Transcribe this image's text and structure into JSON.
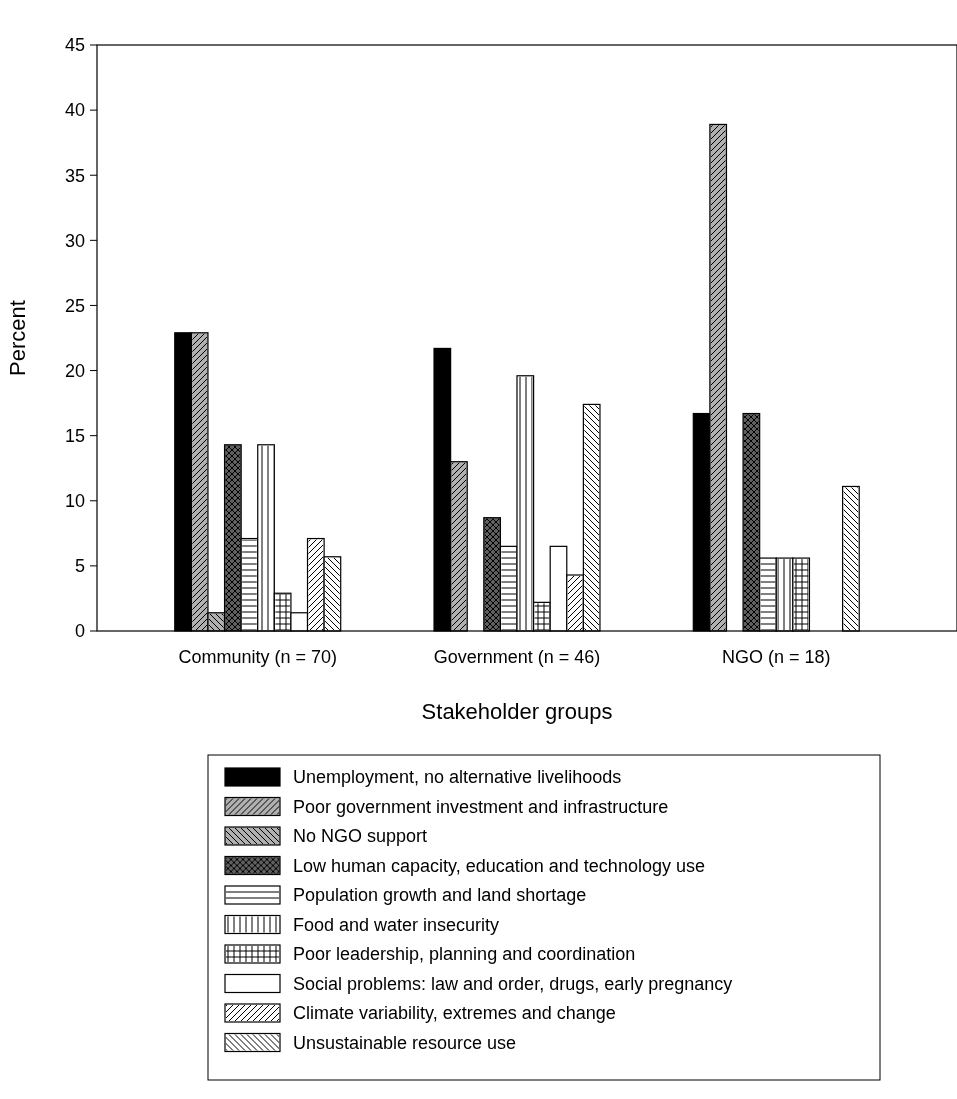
{
  "chart_data": {
    "type": "bar",
    "xlabel": "Stakeholder groups",
    "ylabel": "Percent",
    "categories": [
      "Community (n = 70)",
      "Government (n = 46)",
      "NGO (n = 18)"
    ],
    "ylim": [
      0,
      45
    ],
    "yticks": [
      0,
      5,
      10,
      15,
      20,
      25,
      30,
      35,
      40,
      45
    ],
    "legend": "bottom",
    "series": [
      {
        "name": "Unemployment, no alternative livelihoods",
        "color": "#000000",
        "values": [
          22.9,
          21.7,
          16.7
        ]
      },
      {
        "name": "Poor government investment and infrastructure",
        "color": "#b0b0b0",
        "values": [
          22.9,
          13.0,
          38.9
        ]
      },
      {
        "name": "No NGO support",
        "color": "#b0b0b0",
        "values": [
          1.4,
          0,
          0
        ]
      },
      {
        "name": "Low human capacity, education and technology use",
        "color": "#606060",
        "values": [
          14.3,
          8.7,
          16.7
        ]
      },
      {
        "name": "Population growth and land shortage",
        "color": "#ffffff",
        "values": [
          7.1,
          6.5,
          5.6
        ]
      },
      {
        "name": "Food and water insecurity",
        "color": "#ffffff",
        "values": [
          14.3,
          19.6,
          5.6
        ]
      },
      {
        "name": "Poor leadership, planning and coordination",
        "color": "#ffffff",
        "values": [
          2.9,
          2.2,
          5.6
        ]
      },
      {
        "name": "Social problems: law and order, drugs, early pregnancy",
        "color": "#ffffff",
        "values": [
          1.4,
          6.5,
          0
        ]
      },
      {
        "name": "Climate variability, extremes and change",
        "color": "#ffffff",
        "values": [
          7.1,
          4.3,
          0
        ]
      },
      {
        "name": "Unsustainable resource use",
        "color": "#ffffff",
        "values": [
          5.7,
          17.4,
          11.1
        ]
      }
    ]
  }
}
